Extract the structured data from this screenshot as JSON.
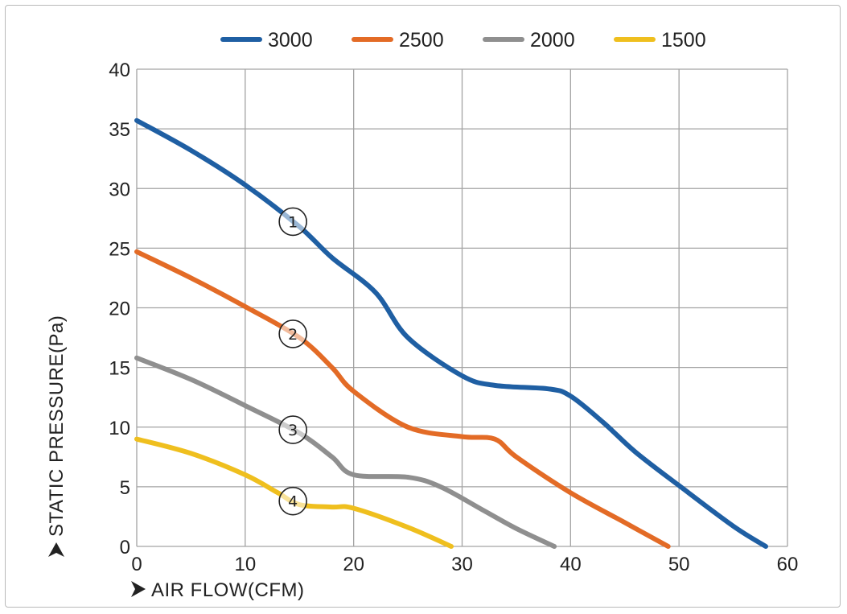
{
  "chart_data": {
    "type": "line",
    "title": "",
    "xlabel": "AIR FLOW(CFM)",
    "ylabel": "STATIC PRESSURE(Pa)",
    "xlim": [
      0,
      60
    ],
    "ylim": [
      0,
      40
    ],
    "xticks": [
      0,
      10,
      20,
      30,
      40,
      50,
      60
    ],
    "yticks": [
      0,
      5,
      10,
      15,
      20,
      25,
      30,
      35,
      40
    ],
    "grid": true,
    "legend_position": "top",
    "series": [
      {
        "name": "3000",
        "color": "#1f5fa3",
        "marker": "1",
        "x": [
          0,
          5,
          10,
          15,
          18,
          22,
          25,
          30,
          33,
          38,
          40,
          43,
          46,
          50,
          55,
          58
        ],
        "y": [
          35.7,
          33.2,
          30.3,
          26.8,
          24.2,
          21.3,
          17.5,
          14.3,
          13.5,
          13.2,
          12.6,
          10.4,
          7.9,
          5.1,
          1.7,
          0
        ]
      },
      {
        "name": "2500",
        "color": "#e36b26",
        "marker": "2",
        "x": [
          0,
          5,
          10,
          15,
          18,
          20,
          25,
          30,
          33,
          35,
          40,
          45,
          49
        ],
        "y": [
          24.7,
          22.5,
          20.1,
          17.5,
          15.0,
          13.0,
          10.0,
          9.2,
          9.0,
          7.5,
          4.5,
          2.0,
          0
        ]
      },
      {
        "name": "2000",
        "color": "#8f8f8f",
        "marker": "3",
        "x": [
          0,
          5,
          10,
          15,
          18,
          20,
          25,
          28,
          32,
          35,
          38.5
        ],
        "y": [
          15.8,
          14.0,
          11.8,
          9.5,
          7.5,
          6.0,
          5.8,
          5.0,
          3.0,
          1.5,
          0
        ]
      },
      {
        "name": "1500",
        "color": "#efbf1e",
        "marker": "4",
        "x": [
          0,
          5,
          10,
          13,
          15,
          18,
          20,
          25,
          29
        ],
        "y": [
          9.0,
          7.8,
          6.0,
          4.5,
          3.5,
          3.3,
          3.2,
          1.6,
          0
        ]
      }
    ]
  }
}
